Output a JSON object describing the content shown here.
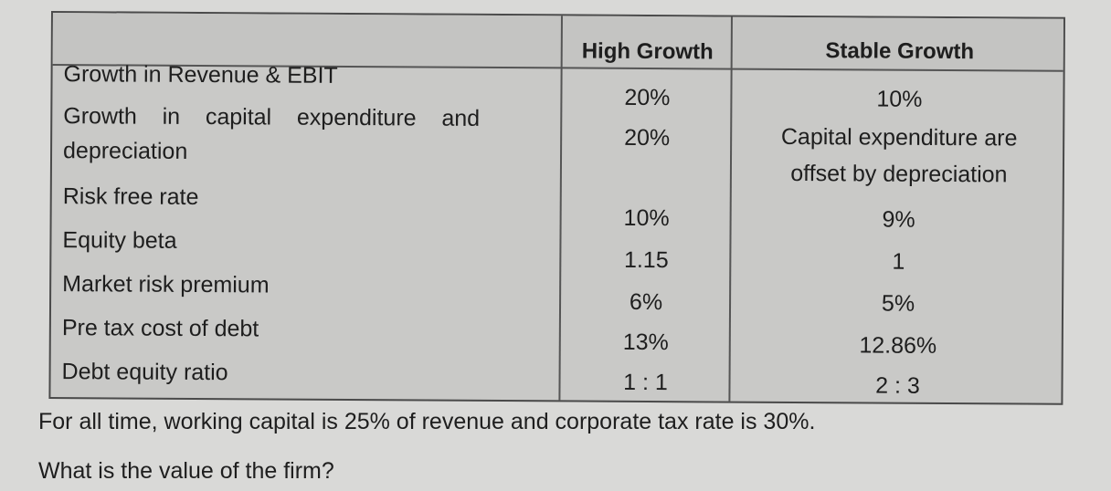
{
  "table": {
    "headers": [
      "",
      "High Growth",
      "Stable Growth"
    ],
    "rows": [
      {
        "label": "Growth in Revenue & EBIT",
        "high": "20%",
        "stable": "10%"
      },
      {
        "label_line1": "Growth    in    capital    expenditure    and",
        "label_line2": "depreciation",
        "high": "20%",
        "stable_line1": "Capital expenditure are",
        "stable_line2": "offset by depreciation"
      },
      {
        "label": "Risk free rate",
        "high": "10%",
        "stable": "9%"
      },
      {
        "label": "Equity beta",
        "high": "1.15",
        "stable": "1"
      },
      {
        "label": "Market risk premium",
        "high": "6%",
        "stable": "5%"
      },
      {
        "label": "Pre tax cost of debt",
        "high": "13%",
        "stable": "12.86%"
      },
      {
        "label": "Debt equity ratio",
        "high": "1 : 1",
        "stable": "2 : 3"
      }
    ]
  },
  "note": "For all time, working capital is 25% of revenue and corporate tax rate is 30%.",
  "question": "What is the value of the firm?"
}
